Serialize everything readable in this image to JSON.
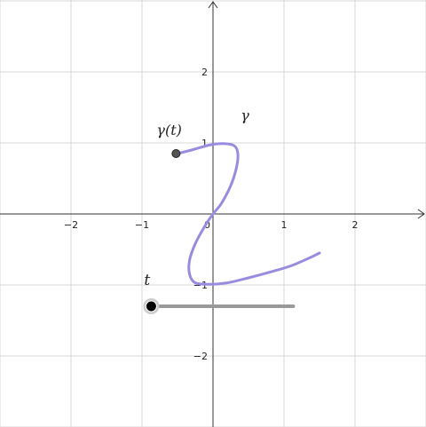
{
  "graphing_view": {
    "x_range": [
      -3,
      3
    ],
    "y_range": [
      -3,
      3
    ],
    "grid": true,
    "x_tick_labels": [
      "−2",
      "−1",
      "0",
      "1",
      "2"
    ],
    "y_tick_labels": [
      "2",
      "1",
      "−1",
      "−2"
    ]
  },
  "curve": {
    "label": "γ",
    "color": "#9a8ae0",
    "points": [
      [
        -0.5,
        0.85
      ],
      [
        -0.3,
        0.9
      ],
      [
        -0.05,
        0.97
      ],
      [
        0.15,
        0.99
      ],
      [
        0.3,
        0.96
      ],
      [
        0.35,
        0.85
      ],
      [
        0.33,
        0.65
      ],
      [
        0.25,
        0.4
      ],
      [
        0.12,
        0.15
      ],
      [
        0.0,
        0.0
      ],
      [
        -0.12,
        -0.18
      ],
      [
        -0.25,
        -0.42
      ],
      [
        -0.33,
        -0.65
      ],
      [
        -0.33,
        -0.85
      ],
      [
        -0.25,
        -0.97
      ],
      [
        -0.05,
        -0.99
      ],
      [
        0.2,
        -0.97
      ],
      [
        0.5,
        -0.9
      ],
      [
        0.8,
        -0.82
      ],
      [
        1.1,
        -0.73
      ],
      [
        1.4,
        -0.6
      ],
      [
        1.5,
        -0.55
      ]
    ]
  },
  "point": {
    "label": "γ(t)",
    "x": -0.52,
    "y": 0.85,
    "color": "#555555"
  },
  "slider": {
    "label": "t",
    "min_x": -0.87,
    "max_x": 1.13,
    "y": -1.3,
    "value": 0,
    "track_color": "#999999"
  }
}
